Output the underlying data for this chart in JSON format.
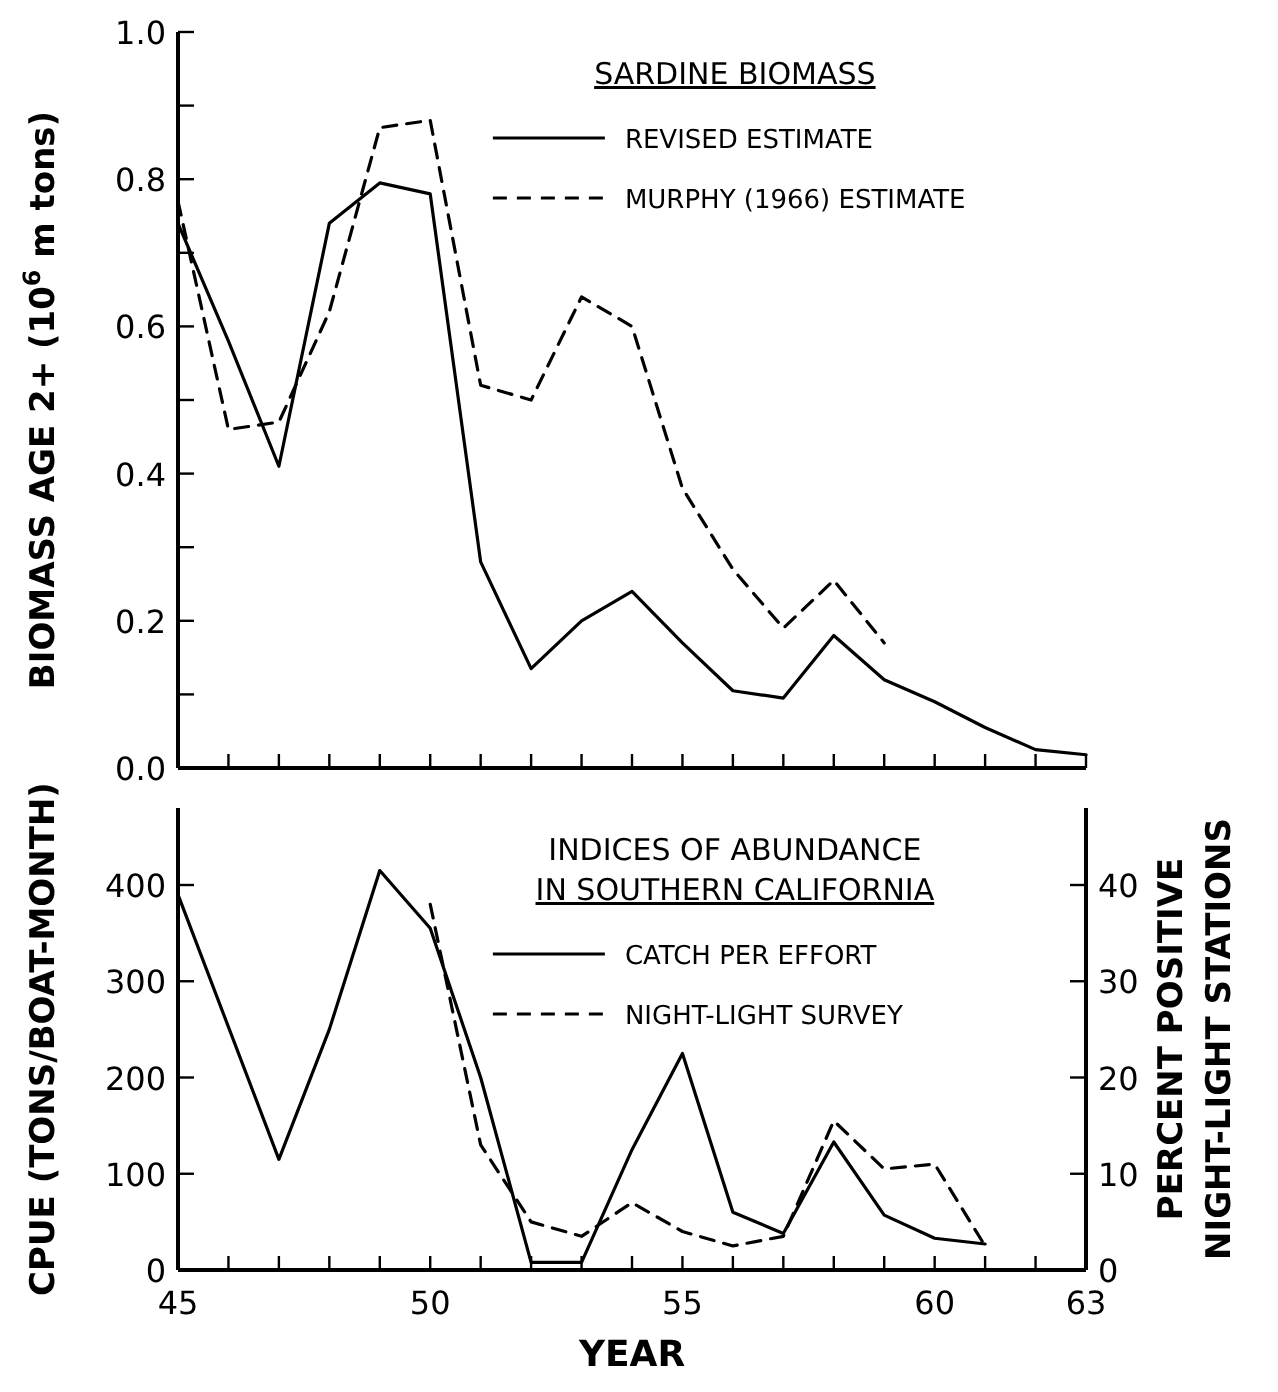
{
  "chart_data": [
    {
      "type": "line",
      "ylabel": "BIOMASS AGE 2+ (10$^{6}$ m tons)",
      "legend_title": "SARDINE BIOMASS",
      "legend": "top right",
      "tick_labels": "y",
      "xlim": [
        45,
        63
      ],
      "xticks": [
        {
          "value": 45,
          "label": null
        },
        {
          "value": 46,
          "label": null
        },
        {
          "value": 47,
          "label": null
        },
        {
          "value": 48,
          "label": null
        },
        {
          "value": 49,
          "label": null
        },
        {
          "value": 50,
          "label": null
        },
        {
          "value": 51,
          "label": null
        },
        {
          "value": 52,
          "label": null
        },
        {
          "value": 53,
          "label": null
        },
        {
          "value": 54,
          "label": null
        },
        {
          "value": 55,
          "label": null
        },
        {
          "value": 56,
          "label": null
        },
        {
          "value": 57,
          "label": null
        },
        {
          "value": 58,
          "label": null
        },
        {
          "value": 59,
          "label": null
        },
        {
          "value": 60,
          "label": null
        },
        {
          "value": 61,
          "label": null
        },
        {
          "value": 62,
          "label": null
        },
        {
          "value": 63,
          "label": null
        }
      ],
      "ylim": [
        0,
        1
      ],
      "yticks": [
        {
          "value": 0,
          "label": "0.0"
        },
        {
          "value": 0.1,
          "label": null
        },
        {
          "value": 0.2,
          "label": "0.2"
        },
        {
          "value": 0.3,
          "label": null
        },
        {
          "value": 0.4,
          "label": "0.4"
        },
        {
          "value": 0.5,
          "label": null
        },
        {
          "value": 0.6,
          "label": "0.6"
        },
        {
          "value": 0.7,
          "label": null
        },
        {
          "value": 0.8,
          "label": "0.8"
        },
        {
          "value": 0.9,
          "label": null
        },
        {
          "value": 1,
          "label": "1.0"
        }
      ],
      "series": [
        {
          "name": "REVISED ESTIMATE",
          "color": "#000000",
          "line_style": "solid",
          "x": [
            45,
            46,
            47,
            48,
            49,
            50,
            51,
            52,
            53,
            54,
            55,
            56,
            57,
            58,
            59,
            60,
            61,
            62,
            63
          ],
          "values": [
            0.74,
            0.58,
            0.41,
            0.74,
            0.795,
            0.78,
            0.28,
            0.135,
            0.2,
            0.24,
            0.17,
            0.105,
            0.095,
            0.18,
            0.12,
            0.09,
            0.055,
            0.025,
            0.018
          ]
        },
        {
          "name": "MURPHY (1966) ESTIMATE",
          "color": "#000000",
          "line_style": "dashed",
          "x": [
            45,
            46,
            47,
            48,
            49,
            50,
            51,
            52,
            53,
            54,
            55,
            56,
            57,
            58,
            59
          ],
          "values": [
            0.77,
            0.46,
            0.47,
            0.62,
            0.87,
            0.88,
            0.52,
            0.5,
            0.64,
            0.6,
            0.38,
            0.27,
            0.19,
            0.255,
            0.17
          ]
        }
      ]
    },
    {
      "type": "line",
      "ylabel": "CPUE (TONS/BOAT-MONTH)",
      "y2label": "PERCENT POSITIVE\nNIGHT-LIGHT STATIONS",
      "xlabel": "YEAR",
      "legend_title": "INDICES OF ABUNDANCE\nIN SOUTHERN CALIFORNIA",
      "legend": "top right",
      "xlim": [
        45,
        63
      ],
      "xticks": [
        45,
        {
          "value": 46,
          "label": null
        },
        {
          "value": 47,
          "label": null
        },
        {
          "value": 48,
          "label": null
        },
        {
          "value": 49,
          "label": null
        },
        50,
        {
          "value": 51,
          "label": null
        },
        {
          "value": 52,
          "label": null
        },
        {
          "value": 53,
          "label": null
        },
        {
          "value": 54,
          "label": null
        },
        55,
        {
          "value": 56,
          "label": null
        },
        {
          "value": 57,
          "label": null
        },
        {
          "value": 58,
          "label": null
        },
        {
          "value": 59,
          "label": null
        },
        60,
        {
          "value": 61,
          "label": null
        },
        {
          "value": 62,
          "label": null
        },
        63
      ],
      "ylim": [
        0,
        480
      ],
      "yticks": [
        0,
        100,
        200,
        300,
        400
      ],
      "y2lim": [
        0,
        48
      ],
      "y2ticks": [
        0,
        10,
        20,
        30,
        40
      ],
      "series": [
        {
          "name": "CATCH PER EFFORT",
          "color": "#000000",
          "line_style": "solid",
          "x": [
            45,
            47,
            48,
            49,
            50,
            51,
            52,
            53,
            54,
            55,
            56,
            57,
            58,
            59,
            60,
            61
          ],
          "values": [
            390,
            115,
            250,
            415,
            355,
            200,
            8,
            8,
            125,
            225,
            60,
            38,
            133,
            57,
            33,
            27
          ]
        },
        {
          "name": "NIGHT-LIGHT SURVEY",
          "color": "#000000",
          "line_style": "dashed",
          "axis": "y2",
          "x": [
            50,
            51,
            52,
            53,
            54,
            55,
            56,
            57,
            58,
            59,
            60,
            61
          ],
          "values": [
            38,
            13,
            5,
            3.5,
            7,
            4,
            2.5,
            3.5,
            15.5,
            10.5,
            11,
            2.5
          ]
        }
      ]
    }
  ]
}
